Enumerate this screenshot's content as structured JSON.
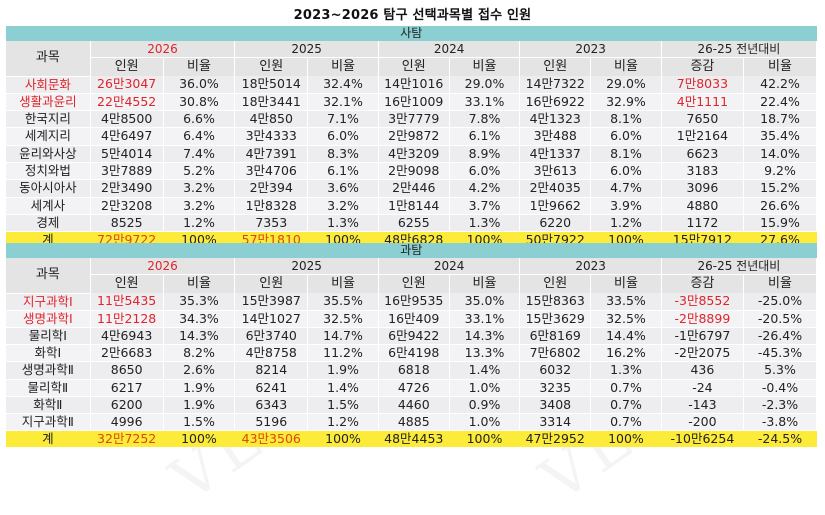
{
  "title": "2023~2026 탐구 선택과목별 접수 인원",
  "header": {
    "subject": "과목",
    "years": [
      "2026",
      "2025",
      "2024",
      "2023",
      "26-25 전년대비"
    ],
    "count": "인원",
    "ratio": "비율",
    "change": "증감"
  },
  "colors": {
    "banner": "#8ccfd2",
    "header": "#e4e4e4",
    "highlight": "#e0242c",
    "sum_row": "#fdeb3a"
  },
  "sections": [
    {
      "name": "사탐",
      "rows": [
        {
          "subject": "사회문화",
          "highlight": true,
          "v": [
            "26만3047",
            "36.0%",
            "18만5014",
            "32.4%",
            "14만1016",
            "29.0%",
            "14만7322",
            "29.0%",
            "7만8033",
            "42.2%"
          ]
        },
        {
          "subject": "생활과윤리",
          "highlight": true,
          "v": [
            "22만4552",
            "30.8%",
            "18만3441",
            "32.1%",
            "16만1009",
            "33.1%",
            "16만6922",
            "32.9%",
            "4만1111",
            "22.4%"
          ]
        },
        {
          "subject": "한국지리",
          "highlight": false,
          "v": [
            "4만8500",
            "6.6%",
            "4만850",
            "7.1%",
            "3만7779",
            "7.8%",
            "4만1323",
            "8.1%",
            "7650",
            "18.7%"
          ]
        },
        {
          "subject": "세계지리",
          "highlight": false,
          "v": [
            "4만6497",
            "6.4%",
            "3만4333",
            "6.0%",
            "2만9872",
            "6.1%",
            "3만488",
            "6.0%",
            "1만2164",
            "35.4%"
          ]
        },
        {
          "subject": "윤리와사상",
          "highlight": false,
          "v": [
            "5만4014",
            "7.4%",
            "4만7391",
            "8.3%",
            "4만3209",
            "8.9%",
            "4만1337",
            "8.1%",
            "6623",
            "14.0%"
          ]
        },
        {
          "subject": "정치와법",
          "highlight": false,
          "v": [
            "3만7889",
            "5.2%",
            "3만4706",
            "6.1%",
            "2만9098",
            "6.0%",
            "3만613",
            "6.0%",
            "3183",
            "9.2%"
          ]
        },
        {
          "subject": "동아시아사",
          "highlight": false,
          "v": [
            "2만3490",
            "3.2%",
            "2만394",
            "3.6%",
            "2만446",
            "4.2%",
            "2만4035",
            "4.7%",
            "3096",
            "15.2%"
          ]
        },
        {
          "subject": "세계사",
          "highlight": false,
          "v": [
            "2만3208",
            "3.2%",
            "1만8328",
            "3.2%",
            "1만8144",
            "3.7%",
            "1만9662",
            "3.9%",
            "4880",
            "26.6%"
          ]
        },
        {
          "subject": "경제",
          "highlight": false,
          "v": [
            "8525",
            "1.2%",
            "7353",
            "1.3%",
            "6255",
            "1.3%",
            "6220",
            "1.2%",
            "1172",
            "15.9%"
          ]
        }
      ],
      "total": {
        "subject": "계",
        "v": [
          "72만9722",
          "100%",
          "57만1810",
          "100%",
          "48만6828",
          "100%",
          "50만7922",
          "100%",
          "15만7912",
          "27.6%"
        ]
      }
    },
    {
      "name": "과탐",
      "rows": [
        {
          "subject": "지구과학Ⅰ",
          "highlight": true,
          "v": [
            "11만5435",
            "35.3%",
            "15만3987",
            "35.5%",
            "16만9535",
            "35.0%",
            "15만8363",
            "33.5%",
            "-3만8552",
            "-25.0%"
          ]
        },
        {
          "subject": "생명과학Ⅰ",
          "highlight": true,
          "v": [
            "11만2128",
            "34.3%",
            "14만1027",
            "32.5%",
            "16만409",
            "33.1%",
            "15만3629",
            "32.5%",
            "-2만8899",
            "-20.5%"
          ]
        },
        {
          "subject": "물리학Ⅰ",
          "highlight": false,
          "v": [
            "4만6943",
            "14.3%",
            "6만3740",
            "14.7%",
            "6만9422",
            "14.3%",
            "6만8169",
            "14.4%",
            "-1만6797",
            "-26.4%"
          ]
        },
        {
          "subject": "화학Ⅰ",
          "highlight": false,
          "v": [
            "2만6683",
            "8.2%",
            "4만8758",
            "11.2%",
            "6만4198",
            "13.3%",
            "7만6802",
            "16.2%",
            "-2만2075",
            "-45.3%"
          ]
        },
        {
          "subject": "생명과학Ⅱ",
          "highlight": false,
          "v": [
            "8650",
            "2.6%",
            "8214",
            "1.9%",
            "6818",
            "1.4%",
            "6032",
            "1.3%",
            "436",
            "5.3%"
          ]
        },
        {
          "subject": "물리학Ⅱ",
          "highlight": false,
          "v": [
            "6217",
            "1.9%",
            "6241",
            "1.4%",
            "4726",
            "1.0%",
            "3235",
            "0.7%",
            "-24",
            "-0.4%"
          ]
        },
        {
          "subject": "화학Ⅱ",
          "highlight": false,
          "v": [
            "6200",
            "1.9%",
            "6343",
            "1.5%",
            "4460",
            "0.9%",
            "3408",
            "0.7%",
            "-143",
            "-2.3%"
          ]
        },
        {
          "subject": "지구과학Ⅱ",
          "highlight": false,
          "v": [
            "4996",
            "1.5%",
            "5196",
            "1.2%",
            "4885",
            "1.0%",
            "3314",
            "0.7%",
            "-200",
            "-3.8%"
          ]
        }
      ],
      "total": {
        "subject": "계",
        "v": [
          "32만7252",
          "100%",
          "43만3506",
          "100%",
          "48만4453",
          "100%",
          "47만2952",
          "100%",
          "-10만6254",
          "-24.5%"
        ]
      }
    }
  ]
}
